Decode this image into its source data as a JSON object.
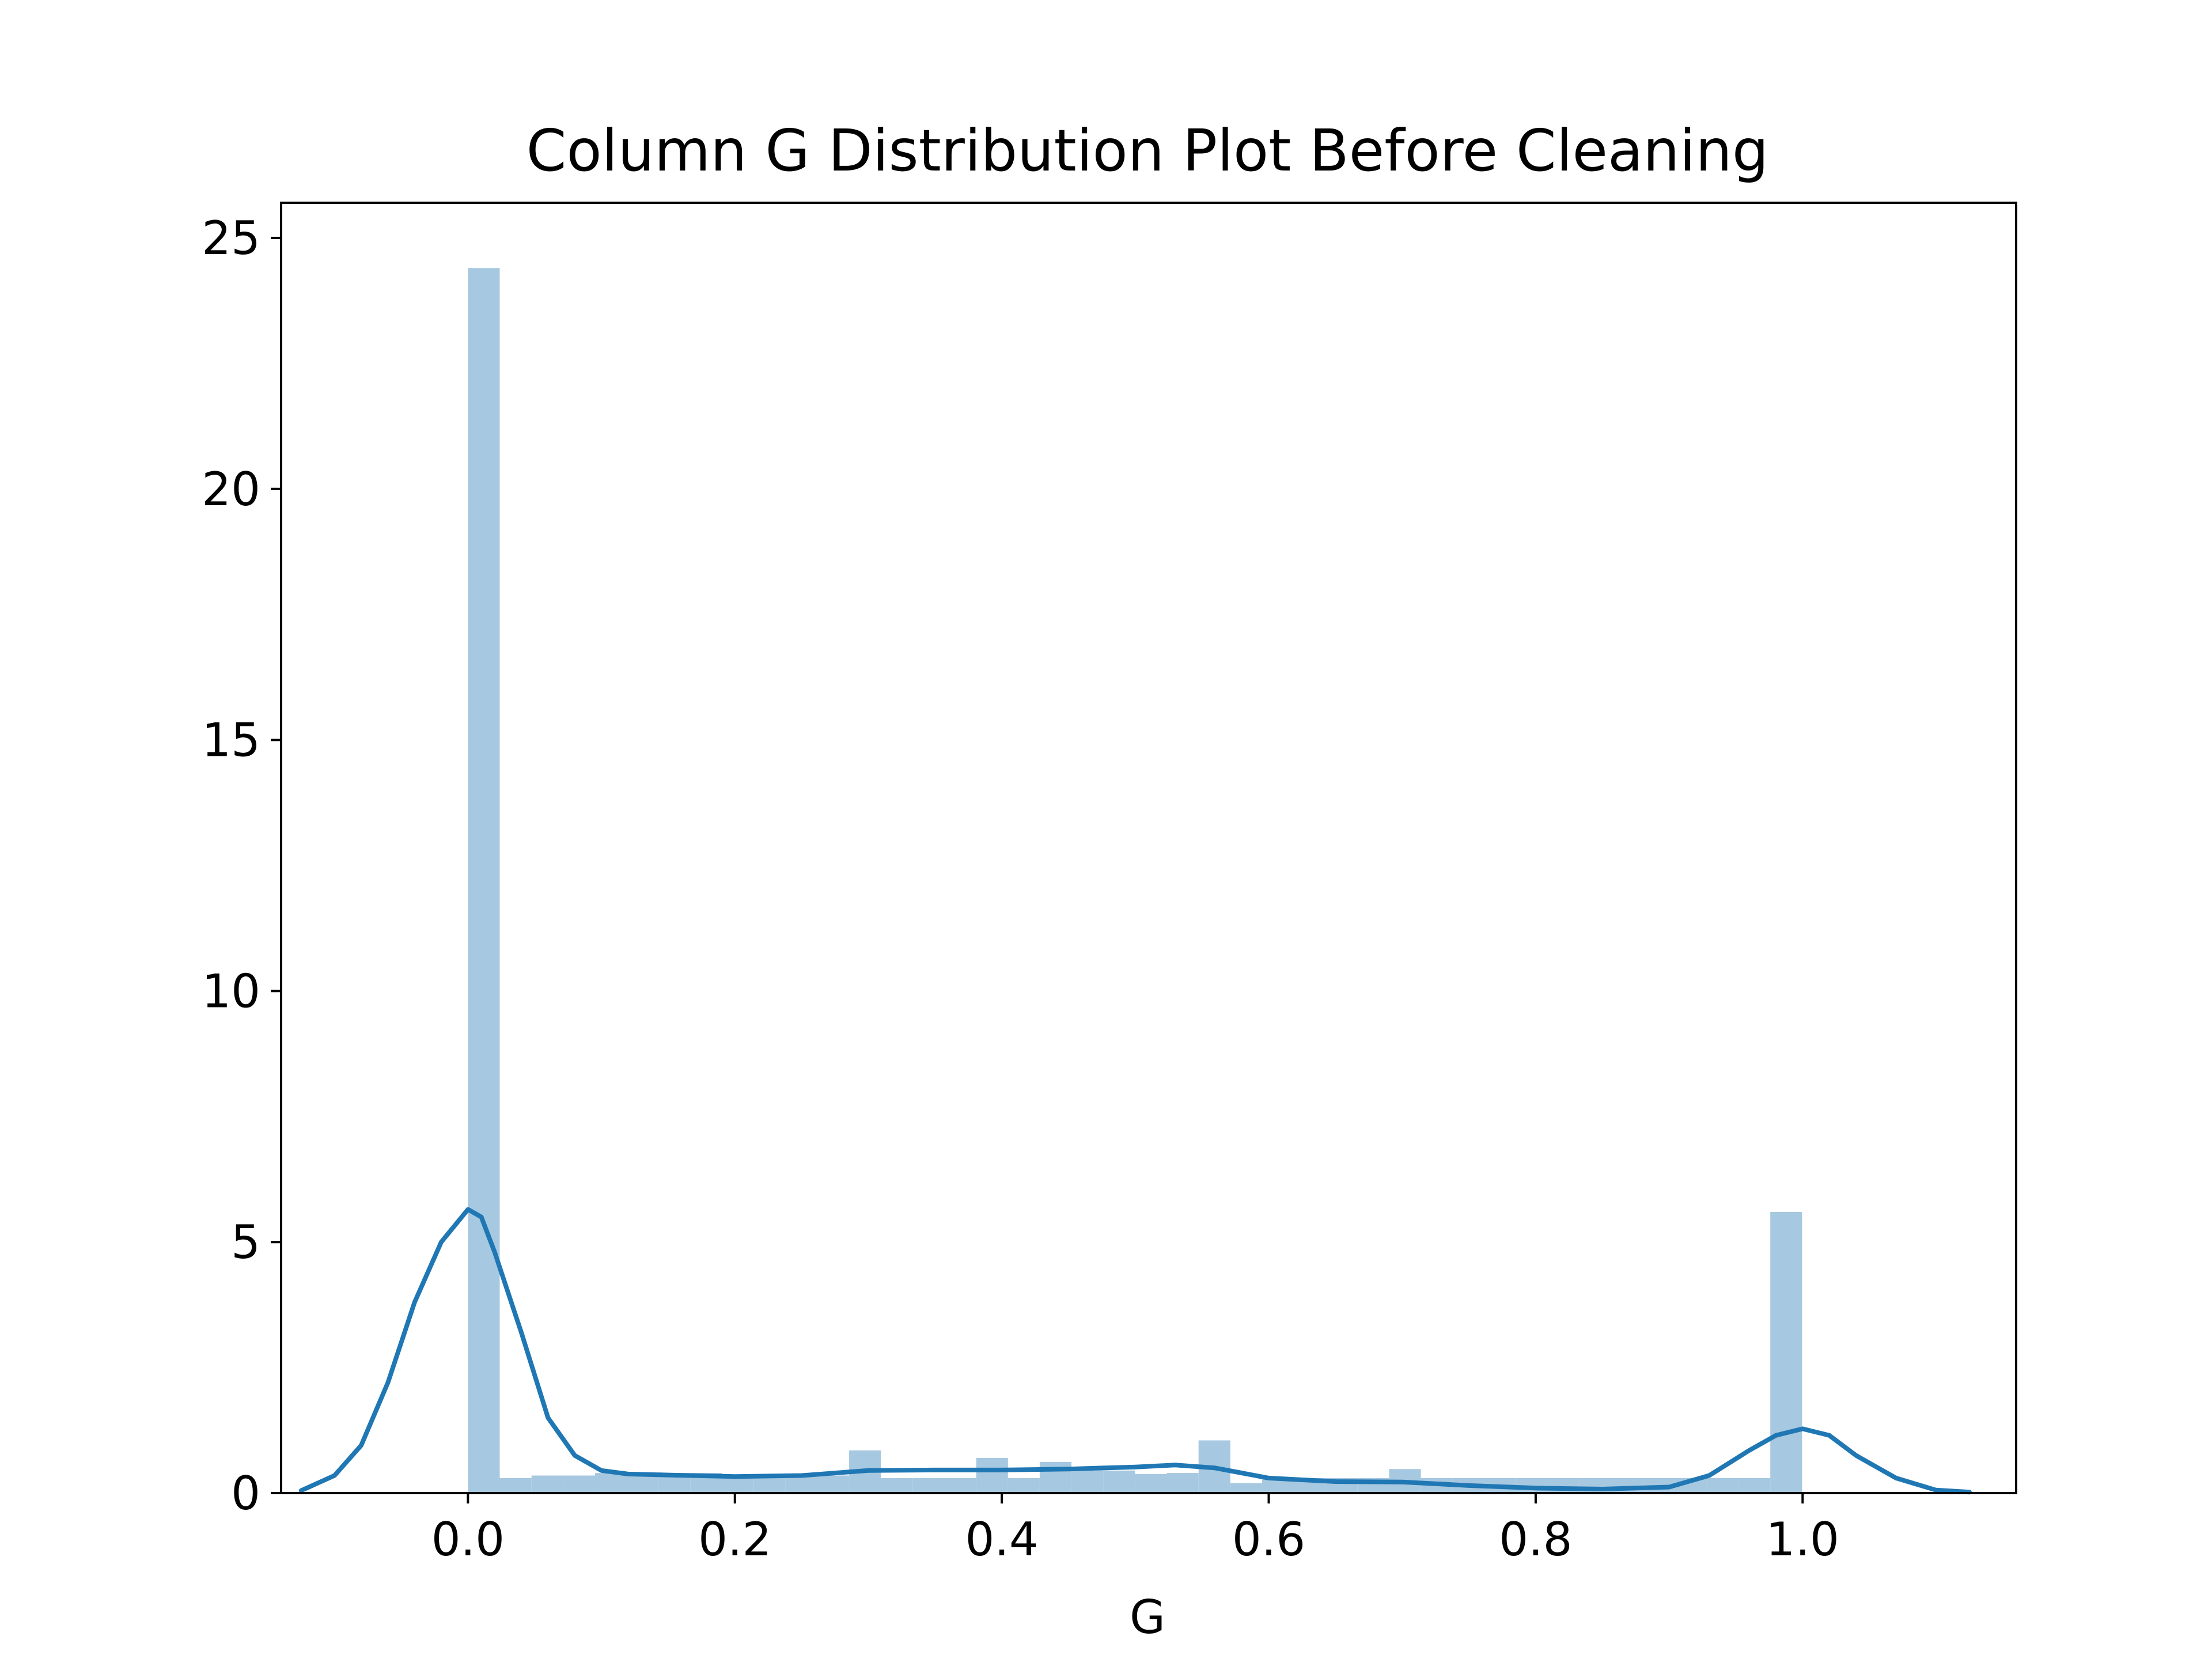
{
  "chart_data": {
    "type": "histogram+kde",
    "title": "Column G Distribution Plot Before Cleaning",
    "xlabel": "G",
    "ylabel": "",
    "xlim": [
      -0.14,
      1.16
    ],
    "ylim": [
      0,
      25.7
    ],
    "xticks": [
      0.0,
      0.2,
      0.4,
      0.6,
      0.8,
      1.0
    ],
    "xtick_labels": [
      "0.0",
      "0.2",
      "0.4",
      "0.6",
      "0.8",
      "1.0"
    ],
    "yticks": [
      0,
      5,
      10,
      15,
      20,
      25
    ],
    "ytick_labels": [
      "0",
      "5",
      "10",
      "15",
      "20",
      "25"
    ],
    "grid": false,
    "colors": {
      "bars": "#a6c8e0",
      "kde": "#1f77b4",
      "axes": "#000000"
    },
    "histogram": {
      "bin_edges_start": 0.0,
      "bin_width": 0.0238,
      "bin_count": 42,
      "densities": [
        24.4,
        0.3,
        0.35,
        0.35,
        0.4,
        0.4,
        0.4,
        0.4,
        0.35,
        0.35,
        0.35,
        0.35,
        0.3,
        0.3,
        0.3,
        0.3,
        0.3,
        0.3,
        0.35,
        0.35,
        0.35,
        0.35,
        0.3,
        0.3,
        0.3,
        0.3,
        0.3,
        0.3,
        0.3,
        0.3,
        0.3,
        0.3,
        0.3,
        0.3,
        0.3,
        0.3,
        0.3,
        0.3,
        0.3,
        0.3,
        0.3,
        5.6
      ],
      "overrides": [
        {
          "bin": 12,
          "density": 0.85
        },
        {
          "bin": 16,
          "density": 0.7
        },
        {
          "bin": 17,
          "density": 0.3
        },
        {
          "bin": 18,
          "density": 0.62
        },
        {
          "bin": 19,
          "density": 0.45
        },
        {
          "bin": 20,
          "density": 0.45
        },
        {
          "bin": 21,
          "density": 0.38
        },
        {
          "bin": 22,
          "density": 0.4
        },
        {
          "bin": 23,
          "density": 1.05
        },
        {
          "bin": 24,
          "density": 0.2
        },
        {
          "bin": 29,
          "density": 0.48
        }
      ]
    },
    "kde": {
      "x": [
        -0.125,
        -0.1,
        -0.08,
        -0.06,
        -0.04,
        -0.02,
        0.0,
        0.01,
        0.02,
        0.04,
        0.06,
        0.08,
        0.1,
        0.12,
        0.15,
        0.2,
        0.25,
        0.3,
        0.35,
        0.4,
        0.45,
        0.5,
        0.53,
        0.56,
        0.6,
        0.65,
        0.7,
        0.75,
        0.8,
        0.85,
        0.9,
        0.93,
        0.96,
        0.98,
        1.0,
        1.02,
        1.04,
        1.07,
        1.1,
        1.125
      ],
      "y": [
        0.05,
        0.35,
        0.95,
        2.2,
        3.8,
        5.0,
        5.65,
        5.5,
        4.8,
        3.2,
        1.5,
        0.75,
        0.45,
        0.38,
        0.36,
        0.33,
        0.35,
        0.45,
        0.46,
        0.46,
        0.48,
        0.52,
        0.56,
        0.5,
        0.3,
        0.23,
        0.22,
        0.15,
        0.1,
        0.08,
        0.12,
        0.35,
        0.85,
        1.15,
        1.28,
        1.15,
        0.75,
        0.3,
        0.06,
        0.02
      ]
    }
  }
}
